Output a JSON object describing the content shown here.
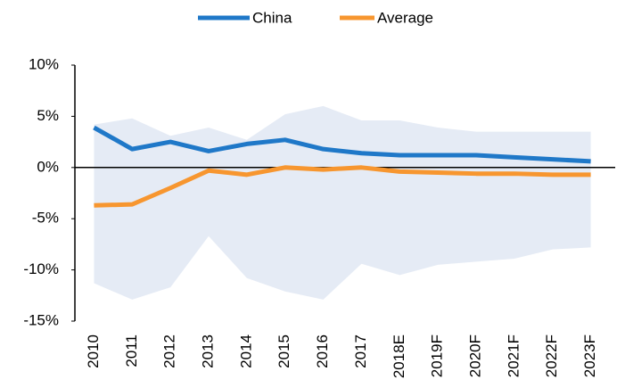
{
  "chart_data": {
    "type": "line",
    "categories": [
      "2010",
      "2011",
      "2012",
      "2013",
      "2014",
      "2015",
      "2016",
      "2017",
      "2018E",
      "2019F",
      "2020F",
      "2021F",
      "2022F",
      "2023F"
    ],
    "series": [
      {
        "name": "China",
        "color": "#1f78c8",
        "values": [
          3.9,
          1.8,
          2.5,
          1.6,
          2.3,
          2.7,
          1.8,
          1.4,
          1.2,
          1.2,
          1.2,
          1.0,
          0.8,
          0.6
        ]
      },
      {
        "name": "Average",
        "color": "#f7962f",
        "values": [
          -3.7,
          -3.6,
          -2.0,
          -0.3,
          -0.7,
          0,
          -0.2,
          0,
          -0.4,
          -0.5,
          -0.6,
          -0.6,
          -0.7,
          -0.7
        ]
      }
    ],
    "range": {
      "color": "#e5ebf5",
      "high": [
        4.2,
        4.8,
        3.1,
        3.9,
        2.7,
        5.2,
        6.0,
        4.6,
        4.6,
        3.9,
        3.5,
        3.5,
        3.5,
        3.5
      ],
      "low": [
        -11.3,
        -12.9,
        -11.7,
        -6.7,
        -10.8,
        -12.1,
        -12.9,
        -9.4,
        -10.5,
        -9.5,
        -9.2,
        -8.9,
        -8.0,
        -7.8
      ]
    },
    "ylim": [
      -15,
      10
    ],
    "yticks": [
      {
        "value": -15,
        "label": "-15%"
      },
      {
        "value": -10,
        "label": "-10%"
      },
      {
        "value": -5,
        "label": "-5%"
      },
      {
        "value": 0,
        "label": "0%"
      },
      {
        "value": 5,
        "label": "5%"
      },
      {
        "value": 10,
        "label": "10%"
      }
    ]
  }
}
